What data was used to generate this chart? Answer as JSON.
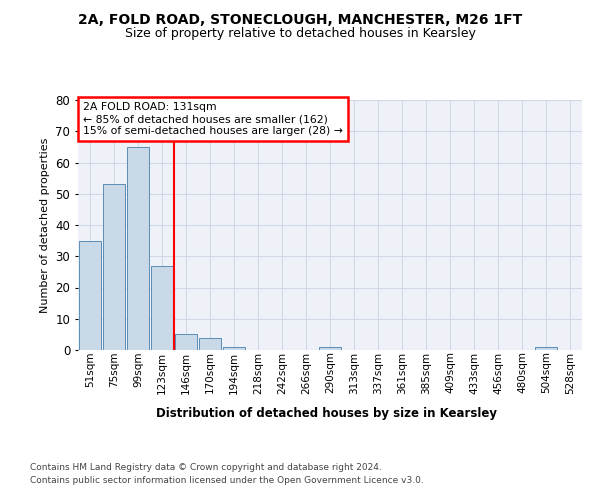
{
  "title_line1": "2A, FOLD ROAD, STONECLOUGH, MANCHESTER, M26 1FT",
  "title_line2": "Size of property relative to detached houses in Kearsley",
  "xlabel": "Distribution of detached houses by size in Kearsley",
  "ylabel": "Number of detached properties",
  "footer_line1": "Contains HM Land Registry data © Crown copyright and database right 2024.",
  "footer_line2": "Contains public sector information licensed under the Open Government Licence v3.0.",
  "bar_labels": [
    "51sqm",
    "75sqm",
    "99sqm",
    "123sqm",
    "146sqm",
    "170sqm",
    "194sqm",
    "218sqm",
    "242sqm",
    "266sqm",
    "290sqm",
    "313sqm",
    "337sqm",
    "361sqm",
    "385sqm",
    "409sqm",
    "433sqm",
    "456sqm",
    "480sqm",
    "504sqm",
    "528sqm"
  ],
  "bar_values": [
    35,
    53,
    65,
    27,
    5,
    4,
    1,
    0,
    0,
    0,
    1,
    0,
    0,
    0,
    0,
    0,
    0,
    0,
    0,
    1,
    0
  ],
  "bar_color": "#c9d9e8",
  "bar_edge_color": "#5b8db8",
  "grid_color": "#d0d8e8",
  "background_color": "#eef2f8",
  "annotation_box_text": "2A FOLD ROAD: 131sqm\n← 85% of detached houses are smaller (162)\n15% of semi-detached houses are larger (28) →",
  "annotation_box_color": "red",
  "annotation_box_fill": "white",
  "red_line_color": "red",
  "ylim": [
    0,
    80
  ],
  "yticks": [
    0,
    10,
    20,
    30,
    40,
    50,
    60,
    70,
    80
  ],
  "fig_width": 6.0,
  "fig_height": 5.0,
  "dpi": 100
}
